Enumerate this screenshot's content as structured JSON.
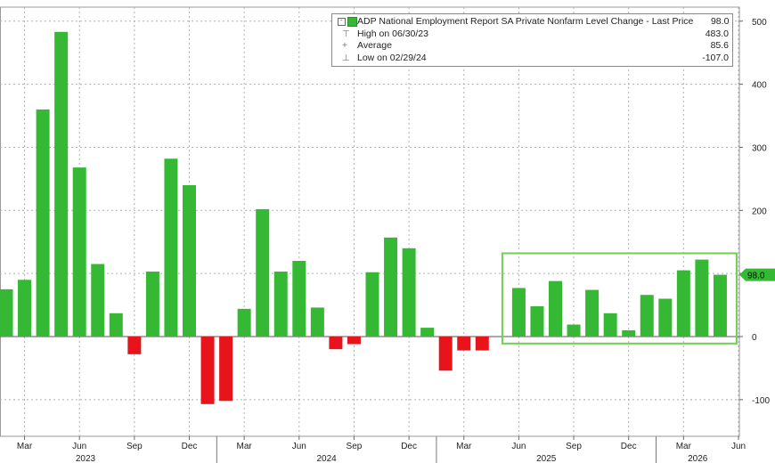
{
  "legend": {
    "series_label": "ADP National Employment Report SA Private Nonfarm Level Change - Last Price",
    "series_value": "98.0",
    "high_label": "High on 06/30/23",
    "high_value": "483.0",
    "average_label": "Average",
    "average_value": "85.6",
    "low_label": "Low on 02/29/24",
    "low_value": "-107.0"
  },
  "colors": {
    "positive": "#35b935",
    "negative": "#e8141b",
    "highlight_box": "#6fcf4f",
    "grid": "#b0b0b0",
    "last_price_tag": "#35b935"
  },
  "chart_data": {
    "type": "bar",
    "title": "ADP National Employment Report SA Private Nonfarm Level Change - Last Price",
    "ylim": [
      -155,
      520
    ],
    "y_axis_side": "right",
    "yticks": [
      -100,
      0,
      100,
      200,
      300,
      400,
      500
    ],
    "ytick_labels": [
      "-100",
      "0",
      "100",
      "200",
      "300",
      "400",
      "500"
    ],
    "last_value_tag": "98.0",
    "grid": true,
    "highlight_range": [
      "Jun 2025",
      "May 2026"
    ],
    "month_tick_labels": [
      "Mar",
      "Jun",
      "Sep",
      "Dec",
      "Mar",
      "Jun",
      "Sep",
      "Dec",
      "Mar",
      "Jun",
      "Sep",
      "Dec",
      "Mar",
      "Jun"
    ],
    "year_labels": [
      "2023",
      "2024",
      "2025",
      "2026"
    ],
    "categories": [
      "Feb 2023",
      "Mar 2023",
      "Apr 2023",
      "May 2023",
      "Jun 2023",
      "Jul 2023",
      "Aug 2023",
      "Sep 2023",
      "Oct 2023",
      "Nov 2023",
      "Dec 2023",
      "Jan 2024",
      "Feb 2024",
      "Mar 2024",
      "Apr 2024",
      "May 2024",
      "Jun 2024",
      "Jul 2024",
      "Aug 2024",
      "Sep 2024",
      "Oct 2024",
      "Nov 2024",
      "Dec 2024",
      "Jan 2025",
      "Feb 2025",
      "Mar 2025",
      "Apr 2025",
      "May 2025",
      "Jun 2025",
      "Jul 2025",
      "Aug 2025",
      "Sep 2025",
      "Oct 2025",
      "Nov 2025",
      "Dec 2025",
      "Jan 2026",
      "Feb 2026",
      "Mar 2026",
      "Apr 2026",
      "May 2026"
    ],
    "values": [
      75,
      90,
      360,
      483,
      268,
      115,
      37,
      -28,
      103,
      282,
      240,
      -107,
      -102,
      44,
      202,
      103,
      120,
      46,
      -20,
      -12,
      102,
      157,
      140,
      14,
      -54,
      -22,
      -22,
      0,
      77,
      48,
      88,
      19,
      74,
      37,
      10,
      66,
      60,
      105,
      122,
      98
    ]
  }
}
